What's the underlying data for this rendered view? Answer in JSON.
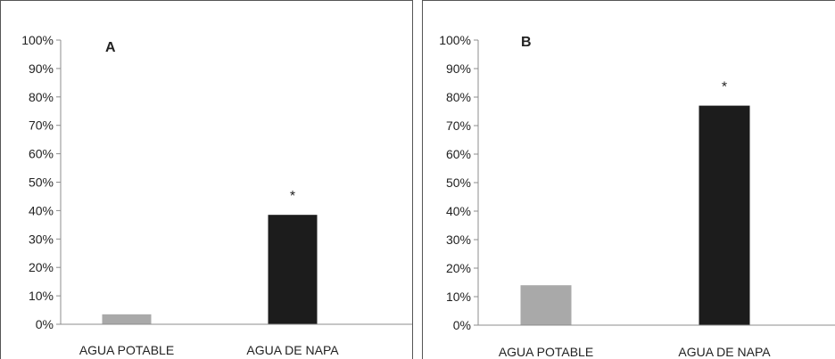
{
  "chart_data": [
    {
      "type": "bar",
      "panel_label": "A",
      "categories": [
        "AGUA POTABLE",
        "AGUA DE NAPA"
      ],
      "values": [
        0.035,
        0.385
      ],
      "annotations": [
        "",
        "*"
      ],
      "bar_colors": [
        "#a9a9a9",
        "#1c1c1c"
      ],
      "yticks": [
        "0%",
        "10%",
        "20%",
        "30%",
        "40%",
        "50%",
        "60%",
        "70%",
        "80%",
        "90%",
        "100%"
      ],
      "ylim": [
        0,
        1
      ],
      "xlabel": "",
      "ylabel": "",
      "grid": false
    },
    {
      "type": "bar",
      "panel_label": "B",
      "categories": [
        "AGUA POTABLE",
        "AGUA DE NAPA"
      ],
      "values": [
        0.14,
        0.77
      ],
      "annotations": [
        "",
        "*"
      ],
      "bar_colors": [
        "#a9a9a9",
        "#1c1c1c"
      ],
      "yticks": [
        "0%",
        "10%",
        "20%",
        "30%",
        "40%",
        "50%",
        "60%",
        "70%",
        "80%",
        "90%",
        "100%"
      ],
      "ylim": [
        0,
        1
      ],
      "xlabel": "",
      "ylabel": "",
      "grid": false
    }
  ],
  "colors": {
    "frame": "#555555",
    "axis": "#8c8c8c",
    "text": "#222222"
  }
}
